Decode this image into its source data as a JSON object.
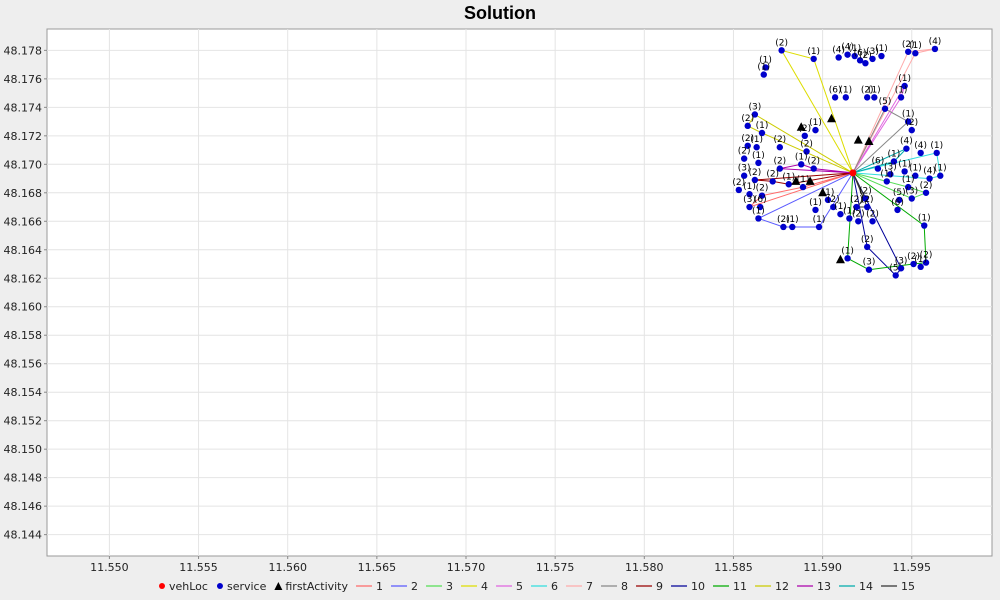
{
  "chart_data": {
    "type": "scatter",
    "title": "Solution",
    "xlabel": "",
    "ylabel": "",
    "xlim": [
      11.5465,
      11.5995
    ],
    "ylim": [
      48.1425,
      48.1795
    ],
    "xticks": [
      "11.550",
      "11.555",
      "11.560",
      "11.565",
      "11.570",
      "11.575",
      "11.580",
      "11.585",
      "11.590",
      "11.595"
    ],
    "yticks": [
      "48.144",
      "48.146",
      "48.148",
      "48.150",
      "48.152",
      "48.154",
      "48.156",
      "48.158",
      "48.160",
      "48.162",
      "48.164",
      "48.166",
      "48.168",
      "48.170",
      "48.172",
      "48.174",
      "48.176",
      "48.178"
    ],
    "grid": true,
    "legend_position": "bottom",
    "depot": {
      "name": "vehLoc",
      "color": "#ff0000",
      "x": 11.5917,
      "y": 48.1694
    },
    "first_activities": {
      "name": "firstActivity",
      "points": [
        [
          11.5888,
          48.1726
        ],
        [
          11.5905,
          48.1732
        ],
        [
          11.592,
          48.1717
        ],
        [
          11.5926,
          48.1716
        ],
        [
          11.5885,
          48.1688
        ],
        [
          11.5893,
          48.1688
        ],
        [
          11.59,
          48.168
        ],
        [
          11.591,
          48.1633
        ]
      ]
    },
    "services": {
      "name": "service",
      "color": "#0000cc",
      "points": [
        [
          11.5877,
          48.178,
          "(2)"
        ],
        [
          11.5895,
          48.1774,
          "(1)"
        ],
        [
          11.5909,
          48.1775,
          "(4)"
        ],
        [
          11.5914,
          48.1777,
          "(4)"
        ],
        [
          11.5918,
          48.1776,
          "(1)"
        ],
        [
          11.5921,
          48.1773,
          "(6)"
        ],
        [
          11.5924,
          48.1771,
          "(2)"
        ],
        [
          11.5928,
          48.1774,
          "(3)"
        ],
        [
          11.5933,
          48.1776,
          "(1)"
        ],
        [
          11.5948,
          48.1779,
          "(2)"
        ],
        [
          11.5952,
          48.1778,
          "(1)"
        ],
        [
          11.5963,
          48.1781,
          "(4)"
        ],
        [
          11.5868,
          48.1768,
          "(1)"
        ],
        [
          11.5867,
          48.1763,
          "(1)"
        ],
        [
          11.5907,
          48.1747,
          "(6)"
        ],
        [
          11.5913,
          48.1747,
          "(1)"
        ],
        [
          11.5925,
          48.1747,
          "(2)"
        ],
        [
          11.5929,
          48.1747,
          "(1)"
        ],
        [
          11.5946,
          48.1755,
          "(1)"
        ],
        [
          11.5944,
          48.1747,
          "(1)"
        ],
        [
          11.5935,
          48.1739,
          "(5)"
        ],
        [
          11.5948,
          48.173,
          "(1)"
        ],
        [
          11.595,
          48.1724,
          "(2)"
        ],
        [
          11.5862,
          48.1735,
          "(3)"
        ],
        [
          11.5858,
          48.1727,
          "(2)"
        ],
        [
          11.5866,
          48.1722,
          "(1)"
        ],
        [
          11.5896,
          48.1724,
          "(1)"
        ],
        [
          11.589,
          48.172,
          "(2)"
        ],
        [
          11.5858,
          48.1713,
          "(2)"
        ],
        [
          11.5863,
          48.1712,
          "(1)"
        ],
        [
          11.5876,
          48.1712,
          "(2)"
        ],
        [
          11.5891,
          48.1709,
          "(2)"
        ],
        [
          11.5947,
          48.1711,
          "(4)"
        ],
        [
          11.5955,
          48.1708,
          "(4)"
        ],
        [
          11.5964,
          48.1708,
          "(1)"
        ],
        [
          11.594,
          48.1702,
          "(1)"
        ],
        [
          11.5856,
          48.1704,
          "(2)"
        ],
        [
          11.5864,
          48.1701,
          "(1)"
        ],
        [
          11.5876,
          48.1697,
          "(2)"
        ],
        [
          11.5888,
          48.17,
          "(1)"
        ],
        [
          11.5895,
          48.1697,
          "(2)"
        ],
        [
          11.5931,
          48.1697,
          "(6)"
        ],
        [
          11.5938,
          48.1693,
          "(3)"
        ],
        [
          11.5946,
          48.1695,
          "(1)"
        ],
        [
          11.5952,
          48.1692,
          "(1)"
        ],
        [
          11.596,
          48.169,
          "(4)"
        ],
        [
          11.5966,
          48.1692,
          "(1)"
        ],
        [
          11.5856,
          48.1692,
          "(3)"
        ],
        [
          11.5862,
          48.1689,
          "(2)"
        ],
        [
          11.5872,
          48.1688,
          "(2)"
        ],
        [
          11.5881,
          48.1686,
          "(1)"
        ],
        [
          11.5889,
          48.1684,
          "(1)"
        ],
        [
          11.5936,
          48.1688,
          "(1)"
        ],
        [
          11.5948,
          48.1684,
          "(1)"
        ],
        [
          11.5958,
          48.168,
          "(2)"
        ],
        [
          11.5853,
          48.1682,
          "(2)"
        ],
        [
          11.5859,
          48.1679,
          "(1)"
        ],
        [
          11.5866,
          48.1678,
          "(2)"
        ],
        [
          11.5903,
          48.1675,
          "(1)"
        ],
        [
          11.5924,
          48.1676,
          "(2)"
        ],
        [
          11.5943,
          48.1675,
          "(5)"
        ],
        [
          11.595,
          48.1676,
          "(3)"
        ],
        [
          11.5859,
          48.167,
          "(3)"
        ],
        [
          11.5865,
          48.167,
          "(6)"
        ],
        [
          11.5896,
          48.1668,
          "(1)"
        ],
        [
          11.5906,
          48.167,
          "(2)"
        ],
        [
          11.5919,
          48.167,
          "(2)"
        ],
        [
          11.5925,
          48.167,
          "(2)"
        ],
        [
          11.5942,
          48.1668,
          "(6)"
        ],
        [
          11.5864,
          48.1662,
          "(1)"
        ],
        [
          11.5878,
          48.1656,
          "(2)"
        ],
        [
          11.5883,
          48.1656,
          "(1)"
        ],
        [
          11.5898,
          48.1656,
          "(1)"
        ],
        [
          11.591,
          48.1665,
          "(1)"
        ],
        [
          11.5915,
          48.1662,
          "(1)"
        ],
        [
          11.592,
          48.166,
          "(2)"
        ],
        [
          11.5928,
          48.166,
          "(2)"
        ],
        [
          11.5957,
          48.1657,
          "(1)"
        ],
        [
          11.5925,
          48.1642,
          "(2)"
        ],
        [
          11.5914,
          48.1634,
          "(1)"
        ],
        [
          11.5926,
          48.1626,
          "(3)"
        ],
        [
          11.5941,
          48.1622,
          "(5)"
        ],
        [
          11.5944,
          48.1627,
          "(3)"
        ],
        [
          11.5951,
          48.163,
          "(2)"
        ],
        [
          11.5958,
          48.1631,
          "(2)"
        ],
        [
          11.5955,
          48.1628,
          "(1)"
        ]
      ]
    },
    "routes": [
      {
        "name": "1",
        "color": "#ff6a6a",
        "stops": [
          [
            11.5917,
            48.1694
          ],
          [
            11.5889,
            48.1684
          ],
          [
            11.5866,
            48.1678
          ],
          [
            11.5859,
            48.167
          ],
          [
            11.5917,
            48.1694
          ]
        ]
      },
      {
        "name": "2",
        "color": "#5a5aff",
        "stops": [
          [
            11.5917,
            48.1694
          ],
          [
            11.5898,
            48.1656
          ],
          [
            11.5883,
            48.1656
          ],
          [
            11.5878,
            48.1656
          ],
          [
            11.5864,
            48.1662
          ],
          [
            11.5917,
            48.1694
          ]
        ]
      },
      {
        "name": "3",
        "color": "#55dd55",
        "stops": [
          [
            11.5917,
            48.1694
          ],
          [
            11.5936,
            48.1688
          ],
          [
            11.5948,
            48.1684
          ],
          [
            11.5958,
            48.168
          ],
          [
            11.595,
            48.1676
          ],
          [
            11.5917,
            48.1694
          ]
        ]
      },
      {
        "name": "4",
        "color": "#dddd00",
        "stops": [
          [
            11.5917,
            48.1694
          ],
          [
            11.5895,
            48.1774
          ],
          [
            11.5877,
            48.178
          ],
          [
            11.5917,
            48.1694
          ]
        ]
      },
      {
        "name": "5",
        "color": "#e066e0",
        "stops": [
          [
            11.5917,
            48.1694
          ],
          [
            11.5946,
            48.1755
          ],
          [
            11.5944,
            48.1747
          ],
          [
            11.5917,
            48.1694
          ]
        ]
      },
      {
        "name": "6",
        "color": "#33dddd",
        "stops": [
          [
            11.5917,
            48.1694
          ],
          [
            11.596,
            48.169
          ],
          [
            11.5966,
            48.1692
          ],
          [
            11.5964,
            48.1708
          ],
          [
            11.5917,
            48.1694
          ]
        ]
      },
      {
        "name": "7",
        "color": "#ffaaaa",
        "stops": [
          [
            11.5917,
            48.1694
          ],
          [
            11.5948,
            48.1779
          ],
          [
            11.5963,
            48.1781
          ],
          [
            11.5952,
            48.1778
          ],
          [
            11.5917,
            48.1694
          ]
        ]
      },
      {
        "name": "8",
        "color": "#888888",
        "stops": [
          [
            11.5917,
            48.1694
          ],
          [
            11.5935,
            48.1739
          ],
          [
            11.5948,
            48.173
          ],
          [
            11.5917,
            48.1694
          ]
        ]
      },
      {
        "name": "9",
        "color": "#990000",
        "stops": [
          [
            11.5917,
            48.1694
          ],
          [
            11.5881,
            48.1686
          ],
          [
            11.5872,
            48.1688
          ],
          [
            11.5862,
            48.1689
          ],
          [
            11.5917,
            48.1694
          ]
        ]
      },
      {
        "name": "10",
        "color": "#000099",
        "stops": [
          [
            11.5917,
            48.1694
          ],
          [
            11.5925,
            48.1642
          ],
          [
            11.5941,
            48.1622
          ],
          [
            11.5944,
            48.1627
          ],
          [
            11.5917,
            48.1694
          ]
        ]
      },
      {
        "name": "11",
        "color": "#00aa00",
        "stops": [
          [
            11.5917,
            48.1694
          ],
          [
            11.5957,
            48.1657
          ],
          [
            11.5958,
            48.1631
          ],
          [
            11.5951,
            48.163
          ],
          [
            11.5926,
            48.1626
          ],
          [
            11.5914,
            48.1634
          ],
          [
            11.5917,
            48.1694
          ]
        ]
      },
      {
        "name": "12",
        "color": "#cccc00",
        "stops": [
          [
            11.5917,
            48.1694
          ],
          [
            11.5866,
            48.1722
          ],
          [
            11.5858,
            48.1727
          ],
          [
            11.5862,
            48.1735
          ],
          [
            11.5917,
            48.1694
          ]
        ]
      },
      {
        "name": "13",
        "color": "#aa00aa",
        "stops": [
          [
            11.5917,
            48.1694
          ],
          [
            11.5895,
            48.1697
          ],
          [
            11.5888,
            48.17
          ],
          [
            11.5876,
            48.1697
          ],
          [
            11.5917,
            48.1694
          ]
        ]
      },
      {
        "name": "14",
        "color": "#00aaaa",
        "stops": [
          [
            11.5917,
            48.1694
          ],
          [
            11.594,
            48.1702
          ],
          [
            11.5947,
            48.1711
          ],
          [
            11.5917,
            48.1694
          ]
        ]
      },
      {
        "name": "15",
        "color": "#333333",
        "stops": [
          [
            11.5917,
            48.1694
          ],
          [
            11.5924,
            48.1676
          ],
          [
            11.5919,
            48.167
          ],
          [
            11.5925,
            48.167
          ],
          [
            11.5917,
            48.1694
          ]
        ]
      }
    ]
  }
}
